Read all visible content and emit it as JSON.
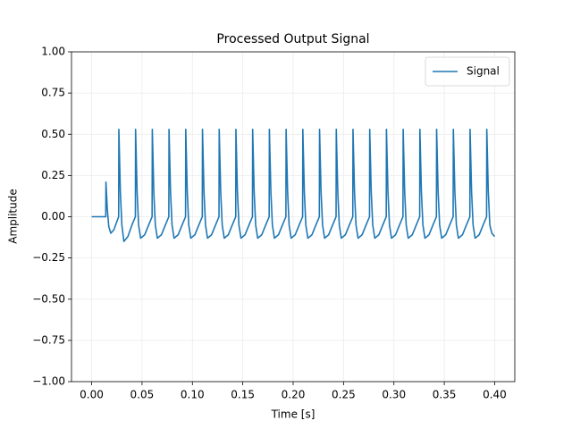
{
  "chart_data": {
    "type": "line",
    "title": "Processed Output Signal",
    "x_label": "Time [s]",
    "y_label": "Amplitude",
    "x": [
      0,
      0.014,
      0.0142,
      0.0155,
      0.017,
      0.019,
      0.022,
      0.025,
      0.0268,
      0.027,
      0.0285,
      0.03,
      0.032,
      0.036,
      0.04,
      0.0434,
      0.0436,
      0.0451,
      0.0466,
      0.0486,
      0.0526,
      0.0566,
      0.06,
      0.0602,
      0.0617,
      0.0632,
      0.0652,
      0.0692,
      0.0732,
      0.0766,
      0.0768,
      0.0783,
      0.0798,
      0.0818,
      0.0858,
      0.0898,
      0.0932,
      0.0934,
      0.0949,
      0.0964,
      0.0984,
      0.1024,
      0.1064,
      0.1098,
      0.11,
      0.1115,
      0.113,
      0.115,
      0.119,
      0.123,
      0.1264,
      0.1266,
      0.1281,
      0.1296,
      0.1316,
      0.1356,
      0.1396,
      0.143,
      0.1432,
      0.1447,
      0.1462,
      0.1482,
      0.1522,
      0.1562,
      0.1596,
      0.1598,
      0.1613,
      0.1628,
      0.1648,
      0.1688,
      0.1728,
      0.1762,
      0.1764,
      0.1779,
      0.1794,
      0.1814,
      0.1854,
      0.1894,
      0.1928,
      0.193,
      0.1945,
      0.196,
      0.198,
      0.202,
      0.206,
      0.2094,
      0.2096,
      0.2111,
      0.2126,
      0.2146,
      0.2186,
      0.2226,
      0.226,
      0.2262,
      0.2277,
      0.2292,
      0.2312,
      0.2352,
      0.2392,
      0.2426,
      0.2428,
      0.2443,
      0.2458,
      0.2478,
      0.2518,
      0.2558,
      0.2592,
      0.2594,
      0.2609,
      0.2624,
      0.2644,
      0.2684,
      0.2724,
      0.2758,
      0.276,
      0.2775,
      0.279,
      0.281,
      0.285,
      0.289,
      0.2924,
      0.2926,
      0.2941,
      0.2956,
      0.2976,
      0.3016,
      0.3056,
      0.309,
      0.3092,
      0.3107,
      0.3122,
      0.3142,
      0.3182,
      0.3222,
      0.3256,
      0.3258,
      0.3273,
      0.3288,
      0.3308,
      0.3348,
      0.3388,
      0.3422,
      0.3424,
      0.3439,
      0.3454,
      0.3474,
      0.3514,
      0.3554,
      0.3588,
      0.359,
      0.3605,
      0.362,
      0.364,
      0.368,
      0.372,
      0.3754,
      0.3756,
      0.3771,
      0.3786,
      0.3806,
      0.3846,
      0.3886,
      0.392,
      0.3922,
      0.3937,
      0.3952,
      0.3972,
      0.4
    ],
    "series": [
      {
        "name": "Signal",
        "color": "#1f77b4",
        "values": [
          0,
          0,
          0.21,
          0.05,
          -0.06,
          -0.1,
          -0.08,
          -0.03,
          0,
          0.53,
          0.15,
          -0.05,
          -0.15,
          -0.12,
          -0.05,
          0,
          0.53,
          0.15,
          -0.05,
          -0.13,
          -0.11,
          -0.05,
          0,
          0.53,
          0.15,
          -0.05,
          -0.13,
          -0.11,
          -0.05,
          0,
          0.53,
          0.15,
          -0.05,
          -0.13,
          -0.11,
          -0.05,
          0,
          0.53,
          0.15,
          -0.05,
          -0.13,
          -0.11,
          -0.05,
          0,
          0.53,
          0.15,
          -0.05,
          -0.13,
          -0.11,
          -0.05,
          0,
          0.53,
          0.15,
          -0.05,
          -0.13,
          -0.11,
          -0.05,
          0,
          0.53,
          0.15,
          -0.05,
          -0.13,
          -0.11,
          -0.05,
          0,
          0.53,
          0.15,
          -0.05,
          -0.13,
          -0.11,
          -0.05,
          0,
          0.53,
          0.15,
          -0.05,
          -0.13,
          -0.11,
          -0.05,
          0,
          0.53,
          0.15,
          -0.05,
          -0.13,
          -0.11,
          -0.05,
          0,
          0.53,
          0.15,
          -0.05,
          -0.13,
          -0.11,
          -0.05,
          0,
          0.53,
          0.15,
          -0.05,
          -0.13,
          -0.11,
          -0.05,
          0,
          0.53,
          0.15,
          -0.05,
          -0.13,
          -0.11,
          -0.05,
          0,
          0.53,
          0.15,
          -0.05,
          -0.13,
          -0.11,
          -0.05,
          0,
          0.53,
          0.15,
          -0.05,
          -0.13,
          -0.11,
          -0.05,
          0,
          0.53,
          0.15,
          -0.05,
          -0.13,
          -0.11,
          -0.05,
          0,
          0.53,
          0.15,
          -0.05,
          -0.13,
          -0.11,
          -0.05,
          0,
          0.53,
          0.15,
          -0.05,
          -0.13,
          -0.11,
          -0.05,
          0,
          0.53,
          0.15,
          -0.05,
          -0.13,
          -0.11,
          -0.05,
          0,
          0.53,
          0.15,
          -0.05,
          -0.13,
          -0.11,
          -0.05,
          0,
          0.53,
          0.15,
          -0.05,
          -0.13,
          -0.11,
          -0.05,
          0,
          0.53,
          0.15,
          -0.05,
          -0.1,
          -0.12
        ]
      }
    ],
    "xlim": [
      -0.02,
      0.42
    ],
    "ylim": [
      -1,
      1
    ],
    "xticks": [
      {
        "value": 0,
        "label": "0.00"
      },
      {
        "value": 0.05,
        "label": "0.05"
      },
      {
        "value": 0.1,
        "label": "0.10"
      },
      {
        "value": 0.15,
        "label": "0.15"
      },
      {
        "value": 0.2,
        "label": "0.20"
      },
      {
        "value": 0.25,
        "label": "0.25"
      },
      {
        "value": 0.3,
        "label": "0.30"
      },
      {
        "value": 0.35,
        "label": "0.35"
      },
      {
        "value": 0.4,
        "label": "0.40"
      }
    ],
    "yticks": [
      {
        "value": -1,
        "label": "−1.00"
      },
      {
        "value": -0.75,
        "label": "−0.75"
      },
      {
        "value": -0.5,
        "label": "−0.50"
      },
      {
        "value": -0.25,
        "label": "−0.25"
      },
      {
        "value": 0,
        "label": "0.00"
      },
      {
        "value": 0.25,
        "label": "0.25"
      },
      {
        "value": 0.5,
        "label": "0.50"
      },
      {
        "value": 0.75,
        "label": "0.75"
      },
      {
        "value": 1,
        "label": "1.00"
      }
    ],
    "grid": true,
    "legend": "upper right"
  }
}
